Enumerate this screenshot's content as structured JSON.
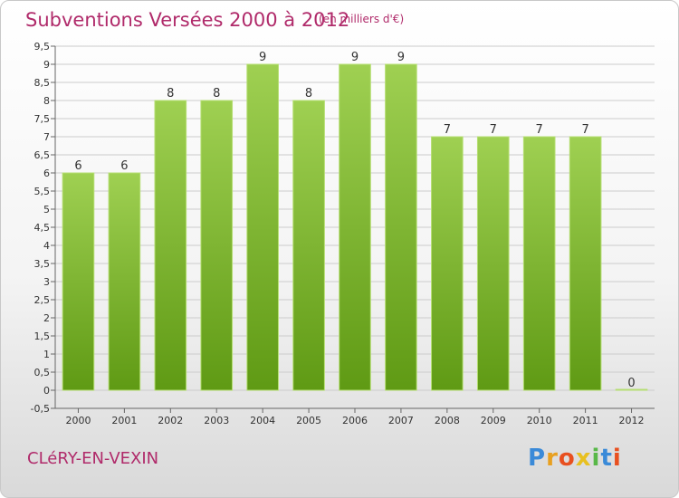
{
  "title": "Subventions Versées 2000 à 2012",
  "subtitle": "(en milliers d'€)",
  "commune": "CLéRY-EN-VEXIN",
  "logo": {
    "letters": [
      "P",
      "r",
      "o",
      "x",
      "i",
      "t",
      "i"
    ],
    "colors": [
      "#3a8ad8",
      "#e8a020",
      "#e85020",
      "#e8c020",
      "#58b848",
      "#3a8ad8",
      "#e85020"
    ]
  },
  "colors": {
    "bar_top": "#9fd052",
    "bar_bottom": "#5f9a14",
    "grid": "#cccccc",
    "axis_text": "#333333",
    "title": "#b02a6a"
  },
  "chart_data": {
    "type": "bar",
    "title": "Subventions Versées 2000 à 2012",
    "subtitle": "(en milliers d'€)",
    "categories": [
      "2000",
      "2001",
      "2002",
      "2003",
      "2004",
      "2005",
      "2006",
      "2007",
      "2008",
      "2009",
      "2010",
      "2011",
      "2012"
    ],
    "values": [
      6,
      6,
      8,
      8,
      9,
      8,
      9,
      9,
      7,
      7,
      7,
      7,
      0
    ],
    "ylim": [
      -0.5,
      9.5
    ],
    "yticks": [
      "-0,5",
      "0",
      "0,5",
      "1",
      "1,5",
      "2",
      "2,5",
      "3",
      "3,5",
      "4",
      "4,5",
      "5",
      "5,5",
      "6",
      "6,5",
      "7",
      "7,5",
      "8",
      "8,5",
      "9",
      "9,5"
    ],
    "grid": true,
    "legend": "none"
  }
}
